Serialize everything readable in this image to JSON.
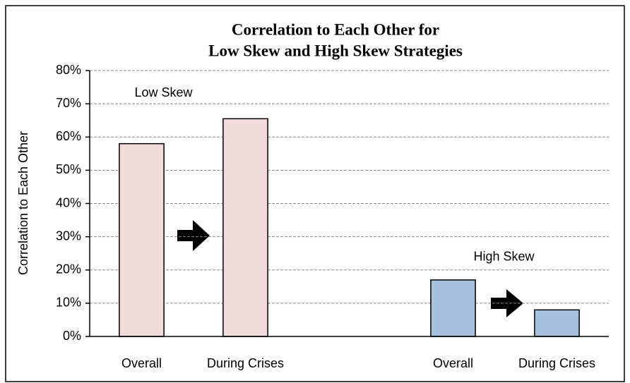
{
  "chart_data": {
    "type": "bar",
    "title": [
      "Correlation to Each Other for",
      "Low Skew and High Skew Strategies"
    ],
    "y_label": "Correlation to Each Other",
    "categories": [
      "Overall",
      "During Crises",
      null,
      "Overall",
      "During Crises"
    ],
    "series": [
      {
        "name": "Low Skew",
        "color": "#f2dcdb",
        "values": [
          58,
          65.5,
          null,
          null,
          null
        ]
      },
      {
        "name": "High Skew",
        "color": "#a7c0dc",
        "values": [
          null,
          null,
          null,
          17,
          8
        ]
      }
    ],
    "ylim": [
      0,
      80
    ],
    "yticks": [
      {
        "value": 0,
        "label": "0%"
      },
      {
        "value": 10,
        "label": "10%"
      },
      {
        "value": 20,
        "label": "20%"
      },
      {
        "value": 30,
        "label": "30%"
      },
      {
        "value": 40,
        "label": "40%"
      },
      {
        "value": 50,
        "label": "50%"
      },
      {
        "value": 60,
        "label": "60%"
      },
      {
        "value": 70,
        "label": "70%"
      },
      {
        "value": 80,
        "label": "80%"
      }
    ],
    "grid": true
  }
}
